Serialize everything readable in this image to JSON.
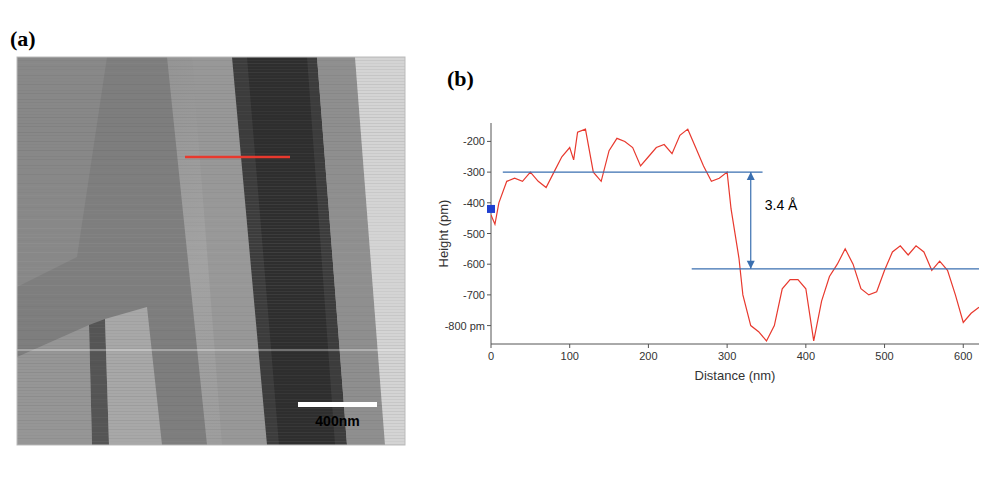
{
  "image_panel": {
    "label": "(a)",
    "scale_bar": "400nm"
  },
  "chart_data": {
    "label": "(b)",
    "type": "line",
    "color": "#e8392e",
    "x_label": "Distance (nm)",
    "y_label": "Height (pm)",
    "xlim": [
      0,
      620
    ],
    "ylim": [
      -860,
      -140
    ],
    "xticks": [
      0,
      100,
      200,
      300,
      400,
      500,
      600
    ],
    "yticks": [
      -200,
      -300,
      -400,
      -500,
      -600,
      -700,
      {
        "value": -800,
        "label": "-800 pm"
      }
    ],
    "grid": false,
    "x": [
      0,
      5,
      10,
      20,
      30,
      40,
      50,
      60,
      70,
      80,
      90,
      100,
      105,
      110,
      120,
      130,
      140,
      150,
      160,
      170,
      180,
      190,
      200,
      210,
      220,
      230,
      240,
      250,
      260,
      270,
      280,
      290,
      300,
      305,
      315,
      320,
      330,
      340,
      350,
      360,
      370,
      380,
      390,
      400,
      410,
      420,
      430,
      440,
      450,
      460,
      470,
      480,
      490,
      500,
      510,
      520,
      530,
      540,
      550,
      560,
      570,
      580,
      590,
      600,
      610,
      620
    ],
    "values": [
      -440,
      -470,
      -400,
      -330,
      -320,
      -330,
      -300,
      -330,
      -350,
      -300,
      -250,
      -220,
      -260,
      -170,
      -160,
      -300,
      -330,
      -230,
      -190,
      -200,
      -220,
      -280,
      -250,
      -220,
      -210,
      -240,
      -180,
      -160,
      -220,
      -280,
      -330,
      -320,
      -300,
      -420,
      -580,
      -700,
      -800,
      -820,
      -850,
      -800,
      -680,
      -650,
      -650,
      -680,
      -850,
      -720,
      -640,
      -600,
      -550,
      -600,
      -680,
      -700,
      -690,
      -620,
      -560,
      -540,
      -570,
      -540,
      -560,
      -620,
      -590,
      -620,
      -700,
      -790,
      -760,
      -740
    ],
    "reference_lines": [
      {
        "y": -300,
        "x": [
          15,
          345
        ]
      },
      {
        "y": -615,
        "x": [
          255,
          620
        ]
      }
    ],
    "annotation": {
      "text": "3.4 Å",
      "x": 330,
      "y": [
        -300,
        -615
      ]
    },
    "cursor": {
      "x": 0,
      "y": -420
    }
  }
}
